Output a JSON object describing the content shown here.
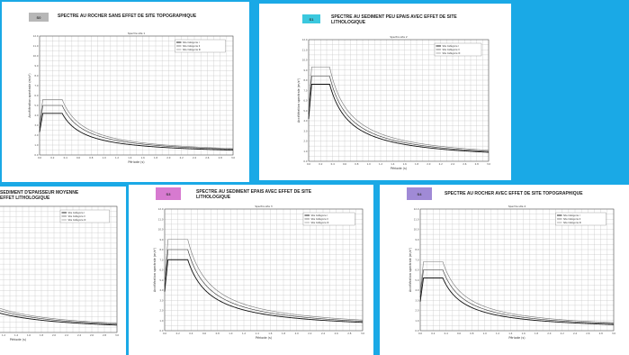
{
  "colors": {
    "background": "#1aa9e6",
    "badge_s1": "#b7b7b7",
    "badge_s2": "#3bc8de",
    "badge_s3": "#d77ad0",
    "badge_s4": "#a08ad6",
    "ink": "#333333"
  },
  "panels": [
    {
      "badge": "S0",
      "title": "SPECTRE AU ROCHER SANS EFFET DE SITE TOPOGRAPHIQUE",
      "chart_title": "Spectre site 1",
      "xlabel": "Période (s)",
      "ylabel": "Accélération spectrale (m/s²)"
    },
    {
      "badge": "S1",
      "title": "SPECTRE AU SEDIMENT PEU EPAIS AVEC EFFET DE SITE LITHOLOGIQUE",
      "chart_title": "Spectre site 2",
      "xlabel": "Période (s)",
      "ylabel": "Accélération spectrale (m/s²)"
    },
    {
      "badge": "",
      "title": "SEDIMENT D'EPAISSEUR MOYENNE EFFET LITHOLOGIQUE",
      "chart_title": "",
      "xlabel": "Période (s)",
      "ylabel": ""
    },
    {
      "badge": "S3",
      "title": "SPECTRE AU SEDIMENT EPAIS AVEC EFFET DE SITE LITHOLOGIQUE",
      "chart_title": "Spectre site 3",
      "xlabel": "Période (s)",
      "ylabel": "Accélération spectrale (m/s²)"
    },
    {
      "badge": "S4",
      "title": "SPECTRE AU ROCHER AVEC EFFET DE SITE TOPOGRAPHIQUE",
      "chart_title": "Spectre site 4",
      "xlabel": "Période (s)",
      "ylabel": "Accélération spectrale (m/s²)"
    }
  ],
  "chart_data": [
    {
      "type": "line",
      "title": "Spectre site 1",
      "xlabel": "Période (s)",
      "ylabel": "Accélération spectrale (m/s²)",
      "xlim": [
        0,
        3
      ],
      "ylim": [
        0,
        12
      ],
      "grid": true,
      "legend": "top-right",
      "series": [
        {
          "name": "Site Catégorie I",
          "plateau": 4.2
        },
        {
          "name": "Site Catégorie II",
          "plateau": 5.0
        },
        {
          "name": "Site Catégorie III",
          "plateau": 5.6
        }
      ]
    },
    {
      "type": "line",
      "title": "Spectre site 2",
      "xlabel": "Période (s)",
      "ylabel": "Accélération spectrale (m/s²)",
      "xlim": [
        0,
        3
      ],
      "ylim": [
        0,
        12
      ],
      "grid": true,
      "legend": "top-right",
      "series": [
        {
          "name": "Site Catégorie I",
          "plateau": 7.6
        },
        {
          "name": "Site Catégorie II",
          "plateau": 8.4
        },
        {
          "name": "Site Catégorie III",
          "plateau": 9.3
        }
      ]
    },
    {
      "type": "line",
      "title": "",
      "xlabel": "Période (s)",
      "ylabel": "",
      "xlim": [
        0,
        3
      ],
      "ylim": [
        0,
        12
      ],
      "grid": true,
      "legend": "top-right",
      "series": [
        {
          "name": "Site Catégorie I",
          "plateau": 6.0
        },
        {
          "name": "Site Catégorie II",
          "plateau": 6.8
        },
        {
          "name": "Site Catégorie III",
          "plateau": 7.5
        }
      ]
    },
    {
      "type": "line",
      "title": "Spectre site 3",
      "xlabel": "Période (s)",
      "ylabel": "Accélération spectrale (m/s²)",
      "xlim": [
        0,
        3
      ],
      "ylim": [
        0,
        12
      ],
      "grid": true,
      "legend": "top-right",
      "series": [
        {
          "name": "Site Catégorie I",
          "plateau": 7.0
        },
        {
          "name": "Site Catégorie II",
          "plateau": 8.0
        },
        {
          "name": "Site Catégorie III",
          "plateau": 9.0
        }
      ]
    },
    {
      "type": "line",
      "title": "Spectre site 4",
      "xlabel": "Période (s)",
      "ylabel": "Accélération spectrale (m/s²)",
      "xlim": [
        0,
        3
      ],
      "ylim": [
        0,
        12
      ],
      "grid": true,
      "legend": "top-right",
      "series": [
        {
          "name": "Site Catégorie I",
          "plateau": 5.2
        },
        {
          "name": "Site Catégorie II",
          "plateau": 6.0
        },
        {
          "name": "Site Catégorie III",
          "plateau": 6.8
        }
      ]
    }
  ]
}
